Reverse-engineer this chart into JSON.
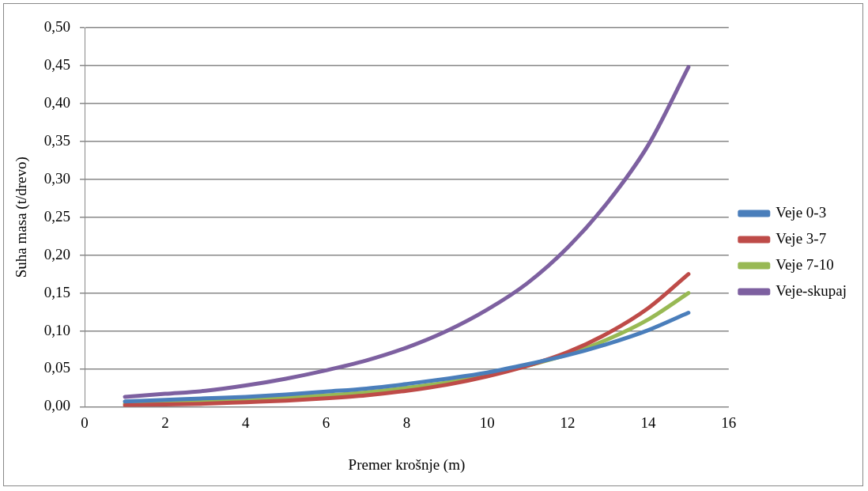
{
  "chart_data": {
    "type": "line",
    "xlabel": "Premer krošnje (m)",
    "ylabel": "Suha masa (t/drevo)",
    "x": [
      1,
      2,
      3,
      4,
      5,
      6,
      7,
      8,
      9,
      10,
      11,
      12,
      13,
      14,
      15
    ],
    "series": [
      {
        "name": "Veje 0-3",
        "color": "#4a7ebb",
        "values": [
          0.007,
          0.009,
          0.011,
          0.013,
          0.016,
          0.02,
          0.024,
          0.03,
          0.037,
          0.045,
          0.056,
          0.068,
          0.083,
          0.101,
          0.124
        ]
      },
      {
        "name": "Veje 3-7",
        "color": "#be4b48",
        "values": [
          0.002,
          0.003,
          0.004,
          0.006,
          0.008,
          0.011,
          0.015,
          0.021,
          0.029,
          0.04,
          0.054,
          0.072,
          0.097,
          0.13,
          0.175
        ]
      },
      {
        "name": "Veje 7-10",
        "color": "#98b954",
        "values": [
          0.004,
          0.005,
          0.007,
          0.009,
          0.012,
          0.015,
          0.019,
          0.025,
          0.032,
          0.042,
          0.054,
          0.069,
          0.089,
          0.115,
          0.15
        ]
      },
      {
        "name": "Veje-skupaj",
        "color": "#7d60a0",
        "values": [
          0.013,
          0.017,
          0.021,
          0.028,
          0.037,
          0.048,
          0.061,
          0.078,
          0.1,
          0.128,
          0.163,
          0.21,
          0.27,
          0.345,
          0.448
        ]
      }
    ],
    "xlim": [
      0,
      16
    ],
    "xticks": [
      0,
      2,
      4,
      6,
      8,
      10,
      12,
      14,
      16
    ],
    "ylim": [
      0,
      0.5
    ],
    "yticks": [
      {
        "value": 0,
        "label": "0,00"
      },
      {
        "value": 0.05,
        "label": "0,05"
      },
      {
        "value": 0.1,
        "label": "0,10"
      },
      {
        "value": 0.15,
        "label": "0,15"
      },
      {
        "value": 0.2,
        "label": "0,20"
      },
      {
        "value": 0.25,
        "label": "0,25"
      },
      {
        "value": 0.3,
        "label": "0,30"
      },
      {
        "value": 0.35,
        "label": "0,35"
      },
      {
        "value": 0.4,
        "label": "0,40"
      },
      {
        "value": 0.45,
        "label": "0,45"
      },
      {
        "value": 0.5,
        "label": "0,50"
      }
    ],
    "grid": "y",
    "legend": "right",
    "marker": "none",
    "line_style": "solid"
  }
}
